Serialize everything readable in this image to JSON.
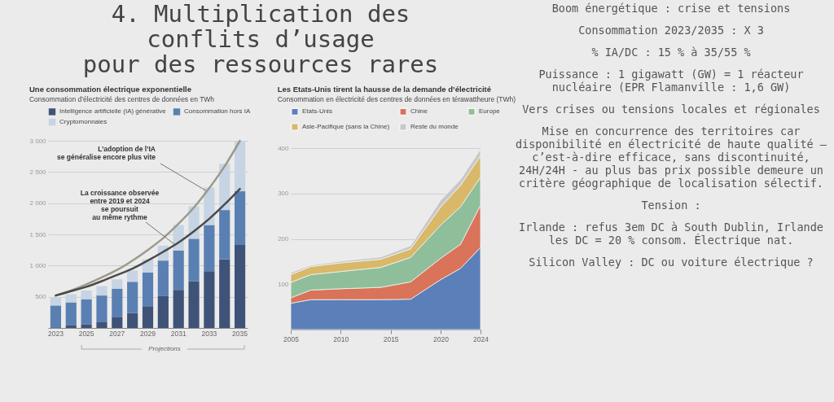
{
  "chart_data": [
    {
      "type": "other",
      "title": "4. Multiplication des\nconflits d’usage\npour des ressources rares"
    },
    {
      "type": "bar",
      "title": "Une consommation électrique exponentielle",
      "subtitle": "Consommation d’électricité des centres de données en TWh",
      "stacked": true,
      "legend": "top",
      "grid": "y",
      "categories": [
        "2023",
        null,
        "2025",
        null,
        "2027",
        null,
        "2029",
        null,
        "2031",
        null,
        "2033",
        null,
        "2035"
      ],
      "ylim": [
        0,
        3000
      ],
      "yticks": [
        500,
        {
          "value": 1000,
          "label": "1 000"
        },
        {
          "value": 1500,
          "label": "1 500"
        },
        {
          "value": 2000,
          "label": "2 000"
        },
        {
          "value": 2500,
          "label": "2 500"
        },
        {
          "value": 3000,
          "label": "3 000"
        }
      ],
      "series": [
        {
          "name": "Intelligence artificielle (IA) générative",
          "color": "#3f5378",
          "values": [
            10,
            40,
            60,
            100,
            170,
            240,
            350,
            510,
            610,
            750,
            910,
            1100,
            1330
          ]
        },
        {
          "name": "Consommation hors IA",
          "color": "#5a80b3",
          "values": [
            350,
            370,
            400,
            420,
            460,
            500,
            540,
            570,
            630,
            680,
            740,
            790,
            860
          ]
        },
        {
          "name": "Cryptomonnaies",
          "color": "#c6d4e3",
          "values": [
            130,
            130,
            140,
            150,
            150,
            180,
            210,
            240,
            410,
            520,
            600,
            740,
            810
          ]
        },
        {
          "type": "line",
          "color": "#9a9a8c",
          "values": [
            520,
            600,
            700,
            810,
            930,
            1080,
            1250,
            1440,
            1670,
            1930,
            2240,
            2590,
            3000
          ]
        },
        {
          "type": "line",
          "color": "#4a4a4a",
          "values": [
            520,
            590,
            660,
            750,
            850,
            950,
            1080,
            1220,
            1370,
            1550,
            1750,
            1980,
            2230
          ]
        }
      ],
      "annotations": [
        {
          "text": "L’adoption de l’IA\nse généralise encore plus vite",
          "x": "2033",
          "y": 2240
        },
        {
          "text": "La croissance observée\nentre 2019 et 2024\nse poursuit\nau même rythme",
          "x": "2031",
          "y": 1370
        },
        "Projections"
      ]
    },
    {
      "type": "area",
      "title": "Les Etats-Unis tirent la hausse de la demande d’électricité",
      "subtitle": "Consommation en électricité des centres de données en térawattheure (TWh)",
      "stacked": true,
      "legend": "top",
      "grid": "y",
      "x": [
        2005,
        2007,
        2010,
        2014,
        2017,
        2020,
        2022,
        2024
      ],
      "xlim": [
        2005,
        2024
      ],
      "xticks": [
        2005,
        2010,
        2015,
        2020,
        2024
      ],
      "ylim": [
        0,
        400
      ],
      "yticks": [
        100,
        200,
        300,
        400
      ],
      "series": [
        {
          "name": "Etats-Unis",
          "color": "#5b7fb8",
          "values": [
            58,
            66,
            66,
            66,
            67,
            110,
            135,
            181
          ]
        },
        {
          "name": "Chine",
          "color": "#d9735a",
          "values": [
            12,
            21,
            24,
            27,
            38,
            47,
            53,
            93
          ]
        },
        {
          "name": "Europe",
          "color": "#8fbf9a",
          "values": [
            34,
            34,
            38,
            44,
            54,
            73,
            83,
            62
          ]
        },
        {
          "name": "Asie-Pacifique (sans la Chine)",
          "color": "#d9b86a",
          "values": [
            17,
            18,
            19,
            18,
            19,
            40,
            47,
            47
          ]
        },
        {
          "name": "Reste du monde",
          "color": "#c8c8c8",
          "values": [
            5,
            3,
            4,
            5,
            7,
            15,
            13,
            15
          ]
        }
      ]
    },
    {
      "type": "other",
      "title": "Boom énergétique : crise et tensions",
      "annotations": [
        "Consommation 2023/2035 : X 3",
        "% IA/DC : 15 % à 35/55 %",
        "Puissance : 1 gigawatt (GW) = 1 réacteur nucléaire (EPR Flamanville : 1,6 GW)",
        "Vers crises ou tensions locales et régionales",
        "Mise en concurrence des territoires car disponibilité en électricité de haute qualité – c’est-à-dire efficace, sans discontinuité, 24H/24H - au plus bas prix possible demeure un critère géographique de localisation sélectif.",
        "Tension :",
        "Irlande : refus 3em DC à South Dublin, Irlande les DC = 20 % consom. Électrique nat.",
        "Silicon Valley : DC ou voiture électrique ?"
      ]
    }
  ]
}
